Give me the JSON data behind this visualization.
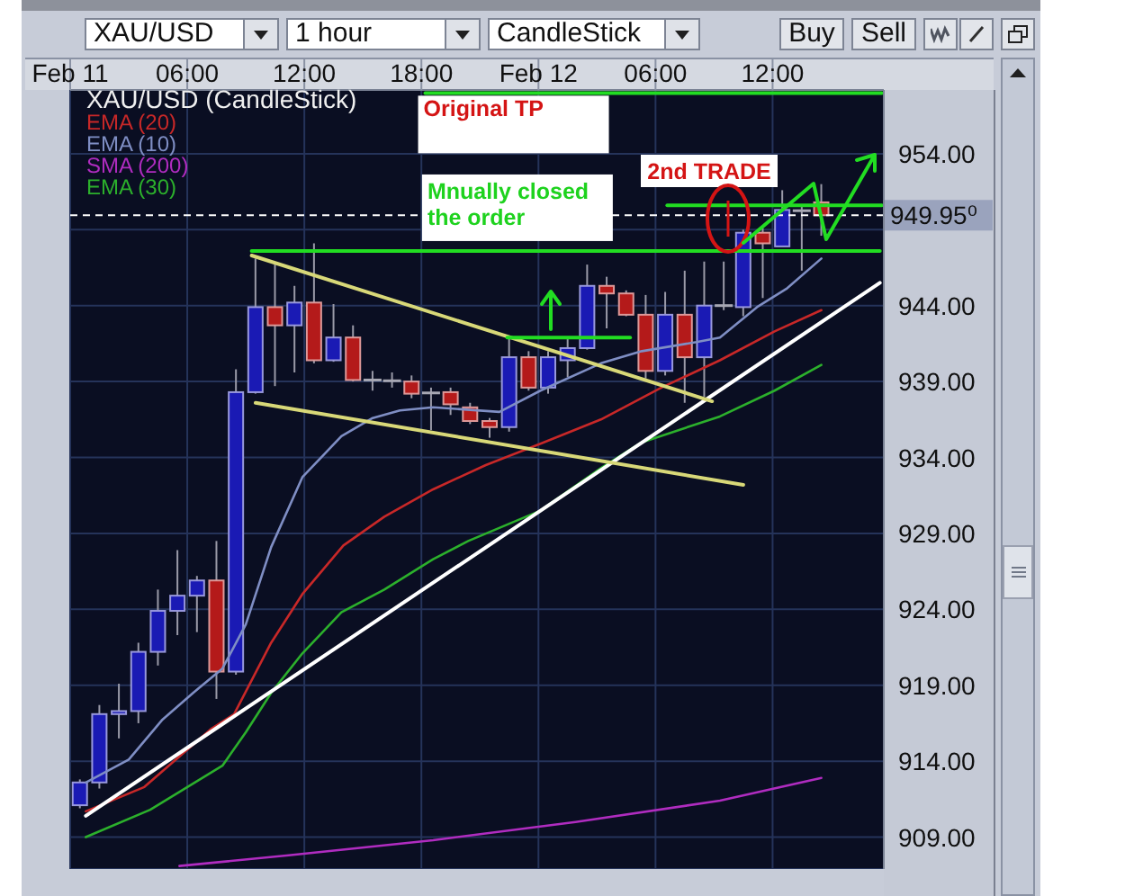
{
  "chart_data": {
    "type": "candlestick",
    "title": "XAU/USD (CandleStick)",
    "x": [
      "--02-11T00:30",
      "--02-11T01:30",
      "--02-11T02:30",
      "--02-11T03:30",
      "--02-11T04:30",
      "--02-11T05:30",
      "--02-11T06:30",
      "--02-11T07:30",
      "--02-11T08:30",
      "--02-11T09:30",
      "--02-11T10:30",
      "--02-11T11:30",
      "--02-11T12:30",
      "--02-11T13:30",
      "--02-11T14:30",
      "--02-11T15:30",
      "--02-11T16:30",
      "--02-11T17:30",
      "--02-11T18:30",
      "--02-11T19:30",
      "--02-11T20:30",
      "--02-11T21:30",
      "--02-11T22:30",
      "--02-11T23:30",
      "--02-12T00:30",
      "--02-12T01:30",
      "--02-12T02:30",
      "--02-12T03:30",
      "--02-12T04:30",
      "--02-12T05:30",
      "--02-12T06:30",
      "--02-12T07:30",
      "--02-12T08:30",
      "--02-12T09:30",
      "--02-12T10:30",
      "--02-12T11:30",
      "--02-12T12:30",
      "--02-12T13:30",
      "--02-12T14:30"
    ],
    "ohlc": [
      [
        911.1,
        912.8,
        910.9,
        912.6
      ],
      [
        912.6,
        917.7,
        912.2,
        917.1
      ],
      [
        917.1,
        919.1,
        915.5,
        917.3
      ],
      [
        917.3,
        921.8,
        916.5,
        921.2
      ],
      [
        921.2,
        925.3,
        920.3,
        923.9
      ],
      [
        923.9,
        927.9,
        922.3,
        924.9
      ],
      [
        924.9,
        926.2,
        922.5,
        925.9
      ],
      [
        925.9,
        928.5,
        918.1,
        919.9
      ],
      [
        919.9,
        939.8,
        919.7,
        938.3
      ],
      [
        938.3,
        947.1,
        938.2,
        943.9
      ],
      [
        943.9,
        946.7,
        938.7,
        942.7
      ],
      [
        942.7,
        945.3,
        939.6,
        944.2
      ],
      [
        944.2,
        948.1,
        940.2,
        940.4
      ],
      [
        940.4,
        944.1,
        940.3,
        941.9
      ],
      [
        941.9,
        942.7,
        939.0,
        939.1
      ],
      [
        939.1,
        939.7,
        938.4,
        939.1
      ],
      [
        939.1,
        939.6,
        938.6,
        939.0
      ],
      [
        939.0,
        939.4,
        937.9,
        938.2
      ],
      [
        938.2,
        938.6,
        935.8,
        938.3
      ],
      [
        938.3,
        938.6,
        936.8,
        937.5
      ],
      [
        937.3,
        937.6,
        936.2,
        936.4
      ],
      [
        936.4,
        936.6,
        935.3,
        936.0
      ],
      [
        936.0,
        941.9,
        935.7,
        940.6
      ],
      [
        940.6,
        941.0,
        938.4,
        938.6
      ],
      [
        938.6,
        941.0,
        938.2,
        940.6
      ],
      [
        940.4,
        941.8,
        939.3,
        941.2
      ],
      [
        941.2,
        946.7,
        941.1,
        945.3
      ],
      [
        945.3,
        945.9,
        942.5,
        944.8
      ],
      [
        944.8,
        945.0,
        943.3,
        943.4
      ],
      [
        943.4,
        944.7,
        939.2,
        939.7
      ],
      [
        939.7,
        944.9,
        939.4,
        943.4
      ],
      [
        943.4,
        946.3,
        937.6,
        940.6
      ],
      [
        940.6,
        946.9,
        938.0,
        944.0
      ],
      [
        944.0,
        946.9,
        943.7,
        944.0
      ],
      [
        943.9,
        949.0,
        943.3,
        948.8
      ],
      [
        948.8,
        949.1,
        944.5,
        948.1
      ],
      [
        947.9,
        951.6,
        947.9,
        950.3
      ],
      [
        950.3,
        950.6,
        946.3,
        950.2
      ],
      [
        950.8,
        952.0,
        948.6,
        949.95
      ]
    ],
    "colors": [
      "#1a1ab4",
      "#1a1ab4",
      "#1a1ab4",
      "#1a1ab4",
      "#1a1ab4",
      "#1a1ab4",
      "#1a1ab4",
      "#b41a1a",
      "#1a1ab4",
      "#1a1ab4",
      "#b41a1a",
      "#1a1ab4",
      "#b41a1a",
      "#1a1ab4",
      "#b41a1a",
      "#a8a8b4",
      "#a8a8b4",
      "#b41a1a",
      "#a8a8b4",
      "#b41a1a",
      "#b41a1a",
      "#b41a1a",
      "#1a1ab4",
      "#b41a1a",
      "#1a1ab4",
      "#1a1ab4",
      "#1a1ab4",
      "#b41a1a",
      "#b41a1a",
      "#b41a1a",
      "#1a1ab4",
      "#b41a1a",
      "#1a1ab4",
      "#a8a8b4",
      "#1a1ab4",
      "#b41a1a",
      "#1a1ab4",
      "#a8a8b4",
      "#b41a1a"
    ],
    "series": [
      {
        "type": "line",
        "name": "EMA (20)",
        "color": "#c82828",
        "x": [
          "--02-11T00:48",
          "--02-11T03:48",
          "--02-11T07:12",
          "--02-11T08:24",
          "--02-11T10:18",
          "--02-11T11:54",
          "--02-11T14:00",
          "--02-11T16:06",
          "--02-11T18:36",
          "--02-11T21:18",
          "--02-12T00:06",
          "--02-12T03:12",
          "--02-12T06:18",
          "--02-12T09:18",
          "--02-12T12:06",
          "--02-12T14:30"
        ],
        "values": [
          910.7,
          912.3,
          916.1,
          917.1,
          921.8,
          925.0,
          928.2,
          930.1,
          931.9,
          933.5,
          934.9,
          936.5,
          938.6,
          940.4,
          942.3,
          943.7
        ]
      },
      {
        "type": "line",
        "name": "EMA (10)",
        "color": "#7f8ec4",
        "x": [
          "--02-11T00:48",
          "--02-11T03:00",
          "--02-11T04:42",
          "--02-11T06:18",
          "--02-11T07:48",
          "--02-11T09:00",
          "--02-11T10:18",
          "--02-11T11:54",
          "--02-11T13:54",
          "--02-11T15:30",
          "--02-11T16:54",
          "--02-11T18:36",
          "--02-11T22:00",
          "--02-12T00:06",
          "--02-12T03:12",
          "--02-12T05:18",
          "--02-12T08:06",
          "--02-12T09:18",
          "--02-12T11:12",
          "--02-12T12:42",
          "--02-12T14:30"
        ],
        "values": [
          912.6,
          914.1,
          916.7,
          918.5,
          920.1,
          923.0,
          928.1,
          932.7,
          935.4,
          936.6,
          937.1,
          937.3,
          937.0,
          938.4,
          940.2,
          941.0,
          941.6,
          941.9,
          943.9,
          945.1,
          947.1
        ]
      },
      {
        "type": "line",
        "name": "SMA (200)",
        "color": "#b02cc0",
        "x": [
          "--02-11T05:36",
          "--02-11T11:12",
          "--02-11T18:36",
          "--02-12T01:54",
          "--02-12T09:18",
          "--02-12T14:30"
        ],
        "values": [
          907.1,
          907.8,
          908.8,
          910.0,
          911.4,
          912.9
        ]
      },
      {
        "type": "line",
        "name": "EMA (30)",
        "color": "#2cb02c",
        "x": [
          "--02-11T00:48",
          "--02-11T04:06",
          "--02-11T07:48",
          "--02-11T09:00",
          "--02-11T10:18",
          "--02-11T11:54",
          "--02-11T13:54",
          "--02-11T16:06",
          "--02-11T18:36",
          "--02-11T20:24",
          "--02-12T00:06",
          "--02-12T03:12",
          "--02-12T05:18",
          "--02-12T09:18",
          "--02-12T12:06",
          "--02-12T14:30"
        ],
        "values": [
          909.0,
          910.8,
          913.7,
          915.9,
          918.5,
          921.1,
          923.8,
          925.3,
          927.3,
          928.5,
          930.5,
          933.3,
          935.0,
          936.7,
          938.4,
          940.1
        ]
      },
      {
        "type": "line",
        "color": "#ffffff",
        "x": [
          "--02-11T00:48",
          "--02-12T17:30"
        ],
        "values": [
          910.4,
          945.5
        ]
      },
      {
        "type": "line",
        "color": "#d8d878",
        "x": [
          "--02-11T09:18",
          "--02-12T08:54"
        ],
        "values": [
          947.3,
          937.7
        ]
      },
      {
        "type": "line",
        "color": "#d8d878",
        "x": [
          "--02-11T09:30",
          "--02-12T10:30"
        ],
        "values": [
          937.6,
          932.2
        ]
      },
      {
        "type": "line",
        "color": "#22dd22",
        "x": [
          "--02-11T18:12",
          "--02-12T17:36"
        ],
        "values": [
          958.0,
          958.0
        ]
      },
      {
        "type": "line",
        "color": "#22dd22",
        "x": [
          "--02-11T09:18",
          "--02-12T17:30"
        ],
        "values": [
          947.6,
          947.6
        ]
      },
      {
        "type": "line",
        "color": "#22dd22",
        "x": [
          "--02-12T06:36",
          "--02-12T17:36"
        ],
        "values": [
          950.6,
          950.6
        ]
      },
      {
        "type": "line",
        "color": "#22dd22",
        "x": [
          "--02-11T22:24",
          "--02-12T04:42"
        ],
        "values": [
          941.9,
          941.9
        ]
      }
    ],
    "xlim": [
      "--02-11T00:00",
      "--02-12T17:42"
    ],
    "xticks": [
      {
        "value": "--02-11T00:00",
        "label": "Feb 11"
      },
      {
        "value": "--02-11T06:00",
        "label": "06:00"
      },
      {
        "value": "--02-11T12:00",
        "label": "12:00"
      },
      {
        "value": "--02-11T18:00",
        "label": "18:00"
      },
      {
        "value": "--02-12T00:00",
        "label": "Feb 12"
      },
      {
        "value": "--02-12T06:00",
        "label": "06:00"
      },
      {
        "value": "--02-12T12:00",
        "label": "12:00"
      }
    ],
    "ylim": [
      906.9,
      958.2
    ],
    "yticks": [
      {
        "value": 909,
        "label": "909.00"
      },
      {
        "value": 914,
        "label": "914.00"
      },
      {
        "value": 919,
        "label": "919.00"
      },
      {
        "value": 924,
        "label": "924.00"
      },
      {
        "value": 929,
        "label": "929.00"
      },
      {
        "value": 934,
        "label": "934.00"
      },
      {
        "value": 939,
        "label": "939.00"
      },
      {
        "value": 944,
        "label": "944.00"
      },
      {
        "value": 949,
        "label": null
      },
      {
        "value": 954,
        "label": "954.00"
      }
    ],
    "ref_lines": [
      {
        "axis": "y",
        "value": 949.95,
        "color": "#ffffff",
        "line_style": "dashed"
      }
    ],
    "annotations": [
      "XAU/USD",
      "1 hour",
      "CandleStick",
      "Buy",
      "Sell",
      "2nd TRADE",
      {
        "text": "Original TP",
        "x": "--02-11T18:12",
        "y": 958.0
      },
      {
        "text": "Mnually closed the order",
        "x": "--02-11T18:24",
        "y": 947.6
      },
      {
        "text": "949.95⁰",
        "x": "--02-12T17:42",
        "y": 949.95
      }
    ],
    "grid": true,
    "legend": "top left"
  }
}
